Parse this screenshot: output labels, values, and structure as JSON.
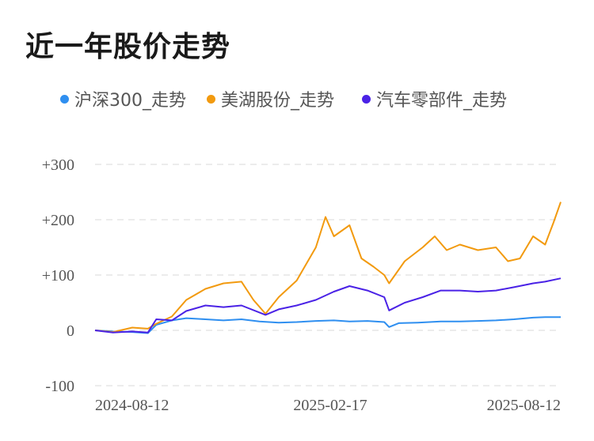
{
  "title": "近一年股价走势",
  "legend": [
    {
      "label": "沪深300_走势",
      "color": "#2f8ff0"
    },
    {
      "label": "美湖股份_走势",
      "color": "#f29a0f"
    },
    {
      "label": "汽车零部件_走势",
      "color": "#4a22e6"
    }
  ],
  "chart_data": {
    "type": "line",
    "title": "近一年股价走势",
    "xlabel": "",
    "ylabel": "",
    "ylim": [
      -100,
      300
    ],
    "yticks": [
      -100,
      0,
      100,
      200,
      300
    ],
    "ytick_labels": [
      "-100",
      "0",
      "+100",
      "+200",
      "+300"
    ],
    "xlim": [
      "2024-08-05",
      "2025-08-28"
    ],
    "xticks": [
      "2024-08-12",
      "2025-02-17",
      "2025-08-12"
    ],
    "grid": true,
    "legend_position": "top",
    "series": [
      {
        "name": "沪深300_走势",
        "color": "#2f8ff0",
        "x": [
          "2024-08-05",
          "2024-08-20",
          "2024-09-05",
          "2024-09-18",
          "2024-09-25",
          "2024-10-08",
          "2024-10-20",
          "2024-11-05",
          "2024-11-20",
          "2024-12-05",
          "2024-12-20",
          "2025-01-05",
          "2025-01-20",
          "2025-02-05",
          "2025-02-20",
          "2025-03-05",
          "2025-03-20",
          "2025-04-03",
          "2025-04-07",
          "2025-04-15",
          "2025-05-01",
          "2025-05-20",
          "2025-06-05",
          "2025-06-20",
          "2025-07-05",
          "2025-07-20",
          "2025-08-05",
          "2025-08-15",
          "2025-08-28"
        ],
        "values": [
          0,
          -2,
          -3,
          -5,
          10,
          18,
          22,
          20,
          18,
          20,
          16,
          14,
          15,
          17,
          18,
          16,
          17,
          15,
          6,
          13,
          14,
          16,
          16,
          17,
          18,
          20,
          23,
          24,
          24
        ]
      },
      {
        "name": "美湖股份_走势",
        "color": "#f29a0f",
        "x": [
          "2024-08-05",
          "2024-08-20",
          "2024-09-05",
          "2024-09-18",
          "2024-09-25",
          "2024-10-08",
          "2024-10-20",
          "2024-11-05",
          "2024-11-20",
          "2024-12-05",
          "2024-12-15",
          "2024-12-25",
          "2025-01-05",
          "2025-01-20",
          "2025-02-05",
          "2025-02-13",
          "2025-02-20",
          "2025-03-05",
          "2025-03-15",
          "2025-03-25",
          "2025-04-03",
          "2025-04-07",
          "2025-04-20",
          "2025-05-05",
          "2025-05-15",
          "2025-05-25",
          "2025-06-05",
          "2025-06-20",
          "2025-07-05",
          "2025-07-15",
          "2025-07-25",
          "2025-08-05",
          "2025-08-15",
          "2025-08-22",
          "2025-08-28"
        ],
        "values": [
          0,
          -3,
          5,
          3,
          12,
          25,
          55,
          75,
          85,
          88,
          55,
          30,
          60,
          90,
          150,
          205,
          170,
          190,
          130,
          115,
          100,
          85,
          125,
          150,
          170,
          145,
          155,
          145,
          150,
          125,
          130,
          170,
          155,
          195,
          232
        ]
      },
      {
        "name": "汽车零部件_走势",
        "color": "#4a22e6",
        "x": [
          "2024-08-05",
          "2024-08-20",
          "2024-09-05",
          "2024-09-18",
          "2024-09-25",
          "2024-10-08",
          "2024-10-20",
          "2024-11-05",
          "2024-11-20",
          "2024-12-05",
          "2024-12-25",
          "2025-01-05",
          "2025-01-20",
          "2025-02-05",
          "2025-02-20",
          "2025-03-05",
          "2025-03-20",
          "2025-04-03",
          "2025-04-07",
          "2025-04-20",
          "2025-05-05",
          "2025-05-20",
          "2025-06-05",
          "2025-06-20",
          "2025-07-05",
          "2025-07-20",
          "2025-08-05",
          "2025-08-15",
          "2025-08-28"
        ],
        "values": [
          0,
          -4,
          -2,
          -4,
          20,
          18,
          35,
          45,
          42,
          45,
          28,
          38,
          45,
          55,
          70,
          80,
          72,
          60,
          36,
          50,
          60,
          72,
          72,
          70,
          72,
          78,
          85,
          88,
          94
        ]
      }
    ]
  }
}
